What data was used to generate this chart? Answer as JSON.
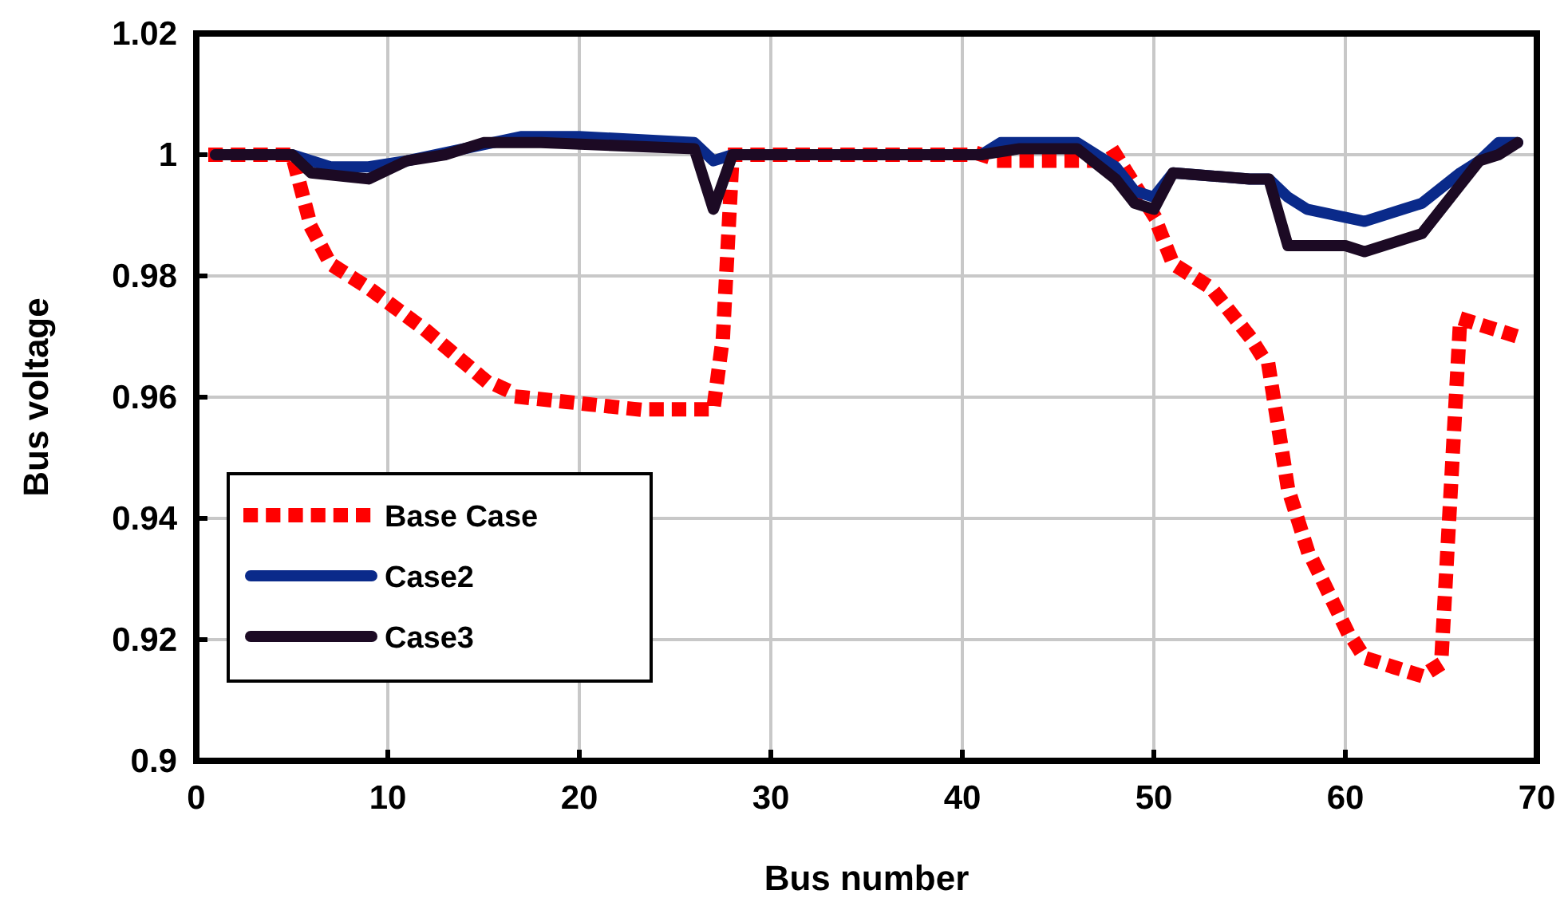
{
  "chart_data": {
    "type": "line",
    "xlabel": "Bus number",
    "ylabel": "Bus voltage",
    "xlim": [
      0,
      70
    ],
    "ylim": [
      0.9,
      1.02
    ],
    "xticks": [
      0,
      10,
      20,
      30,
      40,
      50,
      60,
      70
    ],
    "yticks": [
      {
        "value": 0.9,
        "label": "0.9"
      },
      0.92,
      0.94,
      0.96,
      0.98,
      {
        "value": 1,
        "label": "1"
      },
      1.02
    ],
    "grid": true,
    "legend": "bottom left",
    "marker": "none",
    "series": [
      {
        "name": "Base Case",
        "color": "#ff0000",
        "line_style": "dotted",
        "x": [
          1,
          5,
          6,
          7,
          9,
          12,
          15,
          17,
          20,
          23,
          27,
          27.5,
          28,
          35,
          41,
          42,
          47,
          48,
          49,
          50,
          51,
          53,
          55,
          56,
          57,
          58,
          60,
          61,
          63,
          64,
          65,
          66,
          67,
          69
        ],
        "values": [
          1,
          1,
          0.988,
          0.982,
          0.978,
          0.971,
          0.963,
          0.96,
          0.959,
          0.958,
          0.958,
          0.97,
          1,
          1,
          1,
          0.999,
          0.999,
          1,
          0.995,
          0.99,
          0.982,
          0.978,
          0.97,
          0.965,
          0.945,
          0.935,
          0.922,
          0.917,
          0.915,
          0.914,
          0.916,
          0.973,
          0.972,
          0.97
        ]
      },
      {
        "name": "Case2",
        "color": "#0a2a8a",
        "line_style": "solid",
        "x": [
          1,
          5,
          7,
          9,
          11,
          14,
          17,
          20,
          26,
          27,
          28,
          35,
          41,
          42,
          46,
          48,
          49,
          50,
          51,
          55,
          56,
          57,
          58,
          61,
          64,
          66,
          67,
          68,
          69
        ],
        "values": [
          1,
          1,
          0.998,
          0.998,
          0.999,
          1.001,
          1.003,
          1.003,
          1.002,
          0.999,
          1,
          1,
          1,
          1.002,
          1.002,
          0.998,
          0.994,
          0.993,
          0.997,
          0.996,
          0.996,
          0.993,
          0.991,
          0.989,
          0.992,
          0.997,
          0.999,
          1.002,
          1.002
        ]
      },
      {
        "name": "Case3",
        "color": "#1c0a24",
        "line_style": "solid",
        "x": [
          1,
          5,
          6,
          9,
          11,
          13,
          15,
          18,
          26,
          27,
          28,
          41,
          43,
          46,
          48,
          49,
          50,
          51,
          55,
          56,
          57,
          60,
          61,
          64,
          66,
          67,
          68,
          69
        ],
        "values": [
          1,
          1,
          0.997,
          0.996,
          0.999,
          1,
          1.002,
          1.002,
          1.001,
          0.991,
          1,
          1,
          1.001,
          1.001,
          0.996,
          0.992,
          0.991,
          0.997,
          0.996,
          0.996,
          0.985,
          0.985,
          0.984,
          0.987,
          0.995,
          0.999,
          1,
          1.002
        ]
      }
    ]
  }
}
